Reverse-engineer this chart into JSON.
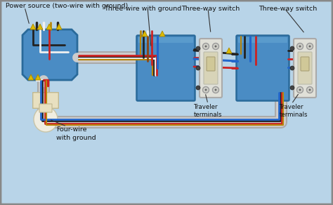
{
  "bg_color": "#b8d4e8",
  "border_color": "#888888",
  "labels": {
    "power_source": "Power source (two-wire with ground)",
    "three_wire": "Three-wire with ground",
    "four_wire": "Four-wire\nwith ground",
    "switch1_label": "Three-way switch",
    "switch2_label": "Three-way switch",
    "traveler1": "Traveler\nterminals",
    "traveler2": "Traveler\nterminals"
  },
  "colors": {
    "box_fill": "#4a8cc4",
    "box_edge": "#2a6a9a",
    "box_fill_light": "#6aaad4",
    "wire_black": "#222222",
    "wire_white": "#f0f0f0",
    "wire_red": "#cc2222",
    "wire_blue": "#2266cc",
    "wire_brown": "#8B4513",
    "wire_bare": "#b8860b",
    "wire_gray": "#888888",
    "conduit_outer": "#aaaaaa",
    "conduit_inner": "#cccccc",
    "nut_yellow": "#ddbb00",
    "lamp_body": "#f8f5e8",
    "lamp_base": "#e8e0c0",
    "switch_body": "#e8e8e0",
    "switch_face": "#d8d4b8"
  }
}
